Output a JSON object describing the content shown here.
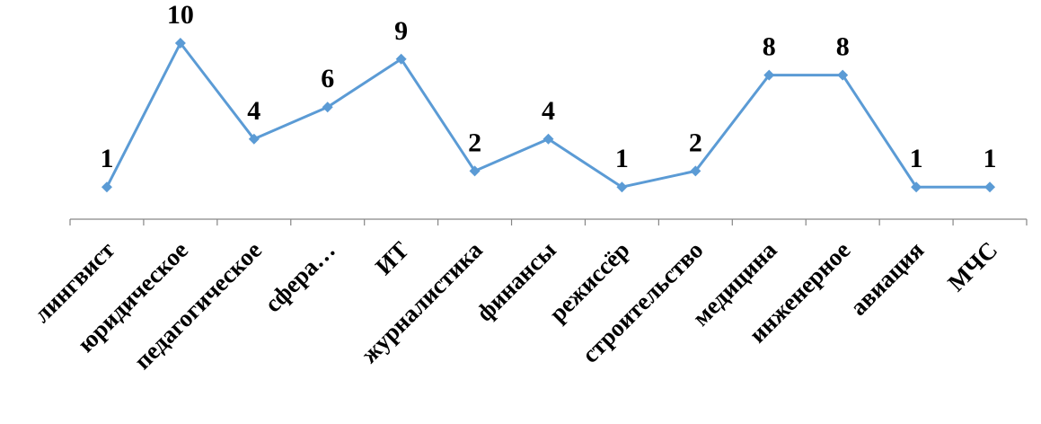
{
  "chart_data": {
    "type": "line",
    "title": "",
    "xlabel": "",
    "ylabel": "",
    "categories": [
      "лингвист",
      "юридическое",
      "педагогическое",
      "сфера…",
      "ИТ",
      "журналистика",
      "финансы",
      "режиссёр",
      "строительство",
      "медицина",
      "инженерное",
      "авиация",
      "МЧС"
    ],
    "series": [
      {
        "values": [
          1,
          10,
          4,
          6,
          9,
          2,
          4,
          1,
          2,
          8,
          8,
          1,
          1
        ],
        "color": "#5B9BD5"
      }
    ],
    "data_labels": [
      "1",
      "10",
      "4",
      "6",
      "9",
      "2",
      "4",
      "1",
      "2",
      "8",
      "8",
      "1",
      "1"
    ],
    "ylim": [
      0,
      11
    ],
    "grid": false,
    "legend": "none",
    "line_color": "#5B9BD5",
    "axis_color": "#868686"
  }
}
